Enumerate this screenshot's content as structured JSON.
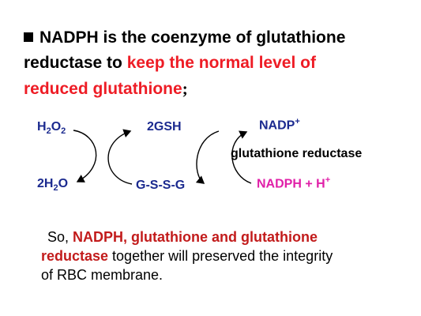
{
  "bullet1": {
    "line1_black": "NADPH  is the coenzyme of glutathione",
    "line2_black": "reductase to ",
    "line2_red": "keep the normal level of",
    "line3_red": "reduced glutathione",
    "line3_end": ";"
  },
  "diagram": {
    "h2o2": "H",
    "h2o2_sub1": "2",
    "h2o2_o": "O",
    "h2o2_sub2": "2",
    "h2o_2": "2H",
    "h2o_sub": "2",
    "h2o_o": "O",
    "gsh": "2GSH",
    "gssg": "G-S-S-G",
    "nadp": "NADP",
    "nadp_sup": "+",
    "enzyme": "glutathione reductase",
    "nadph": "NADPH + H",
    "nadph_sup": "+"
  },
  "bullet2": {
    "so": "So, ",
    "bold1": "NADPH, glutathione and glutathione",
    "bold2": "reductase",
    "rest2": " together will preserved the integrity",
    "line3": "of RBC membrane."
  }
}
